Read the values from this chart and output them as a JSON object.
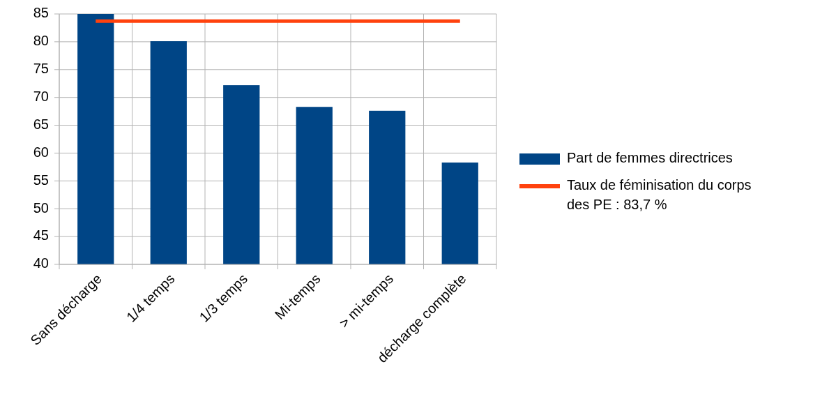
{
  "chart_data": {
    "type": "bar",
    "categories": [
      "Sans décharge",
      "1/4 temps",
      "1/3 temps",
      "Mi-temps",
      "> mi-temps",
      "décharge complète"
    ],
    "series": [
      {
        "name": "Part de femmes directrices",
        "color": "#004586",
        "values": [
          85,
          80.1,
          72.2,
          68.3,
          67.6,
          58.3
        ]
      },
      {
        "name": "Taux de féminisation du corps des PE : 83,7 %",
        "type": "line",
        "color": "#ff420e",
        "values": [
          83.7,
          83.7,
          83.7,
          83.7,
          83.7,
          83.7
        ]
      }
    ],
    "ylim": [
      40,
      85
    ],
    "yticks": [
      40,
      45,
      50,
      55,
      60,
      65,
      70,
      75,
      80,
      85
    ],
    "grid": true,
    "legend": "right"
  }
}
